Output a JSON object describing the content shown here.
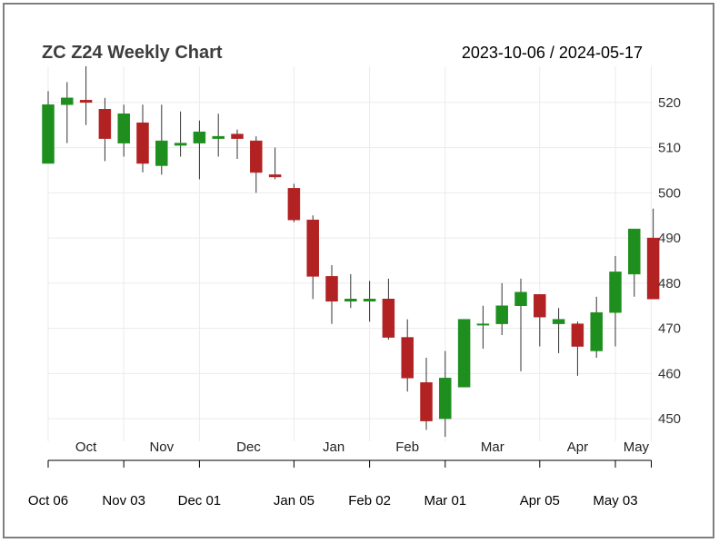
{
  "chart_data": {
    "type": "candlestick",
    "title": "ZC Z24 Weekly Chart",
    "date_range": "2023-10-06 / 2024-05-17",
    "ylim": [
      445,
      528
    ],
    "yticks": [
      450,
      460,
      470,
      480,
      490,
      500,
      510,
      520
    ],
    "colors": {
      "up": "#1e8f1e",
      "down": "#b22222",
      "wick": "#333333",
      "grid": "#ebebeb"
    },
    "grid": true,
    "month_labels": [
      {
        "label": "Oct",
        "week": 2
      },
      {
        "label": "Nov",
        "week": 6
      },
      {
        "label": "Dec",
        "week": 10.6
      },
      {
        "label": "Jan",
        "week": 15.1
      },
      {
        "label": "Feb",
        "week": 19
      },
      {
        "label": "Mar",
        "week": 23.5
      },
      {
        "label": "Apr",
        "week": 28
      },
      {
        "label": "May",
        "week": 31.1
      }
    ],
    "x_tick_weeks": [
      0,
      4,
      8,
      13,
      17,
      21,
      26,
      30,
      31.9
    ],
    "x_labels": [
      {
        "label": "Oct 06",
        "week": 0
      },
      {
        "label": "Nov 03",
        "week": 4
      },
      {
        "label": "Dec 01",
        "week": 8
      },
      {
        "label": "Jan 05",
        "week": 13
      },
      {
        "label": "Feb 02",
        "week": 17
      },
      {
        "label": "Mar 01",
        "week": 21
      },
      {
        "label": "Apr 05",
        "week": 26
      },
      {
        "label": "May 03",
        "week": 30
      }
    ],
    "candles": [
      {
        "date": "2023-10-06",
        "open": 506.5,
        "high": 522.5,
        "low": 506.5,
        "close": 519.5
      },
      {
        "date": "2023-10-13",
        "open": 519.5,
        "high": 524.5,
        "low": 511.0,
        "close": 521.0
      },
      {
        "date": "2023-10-20",
        "open": 520.5,
        "high": 528.0,
        "low": 515.0,
        "close": 520.0
      },
      {
        "date": "2023-10-27",
        "open": 518.5,
        "high": 521.0,
        "low": 507.0,
        "close": 512.0
      },
      {
        "date": "2023-11-03",
        "open": 511.0,
        "high": 519.5,
        "low": 508.0,
        "close": 517.5
      },
      {
        "date": "2023-11-10",
        "open": 515.5,
        "high": 519.5,
        "low": 504.5,
        "close": 506.5
      },
      {
        "date": "2023-11-17",
        "open": 506.0,
        "high": 519.5,
        "low": 504.0,
        "close": 511.5
      },
      {
        "date": "2023-11-24",
        "open": 510.5,
        "high": 518.0,
        "low": 508.0,
        "close": 511.0
      },
      {
        "date": "2023-12-01",
        "open": 511.0,
        "high": 516.0,
        "low": 503.0,
        "close": 513.5
      },
      {
        "date": "2023-12-08",
        "open": 512.0,
        "high": 517.5,
        "low": 508.0,
        "close": 512.5
      },
      {
        "date": "2023-12-15",
        "open": 513.0,
        "high": 514.0,
        "low": 507.5,
        "close": 512.0
      },
      {
        "date": "2023-12-22",
        "open": 511.5,
        "high": 512.5,
        "low": 500.0,
        "close": 504.5
      },
      {
        "date": "2023-12-29",
        "open": 504.0,
        "high": 510.0,
        "low": 503.0,
        "close": 503.5
      },
      {
        "date": "2024-01-05",
        "open": 501.0,
        "high": 502.0,
        "low": 493.5,
        "close": 494.0
      },
      {
        "date": "2024-01-12",
        "open": 494.0,
        "high": 495.0,
        "low": 476.5,
        "close": 481.5
      },
      {
        "date": "2024-01-19",
        "open": 481.5,
        "high": 484.0,
        "low": 471.0,
        "close": 476.0
      },
      {
        "date": "2024-01-26",
        "open": 476.0,
        "high": 482.0,
        "low": 474.5,
        "close": 476.5
      },
      {
        "date": "2024-02-02",
        "open": 476.0,
        "high": 480.5,
        "low": 471.5,
        "close": 476.5
      },
      {
        "date": "2024-02-09",
        "open": 476.5,
        "high": 481.0,
        "low": 467.5,
        "close": 468.0
      },
      {
        "date": "2024-02-16",
        "open": 468.0,
        "high": 472.0,
        "low": 456.0,
        "close": 459.0
      },
      {
        "date": "2024-02-23",
        "open": 458.0,
        "high": 463.5,
        "low": 447.5,
        "close": 449.5
      },
      {
        "date": "2024-03-01",
        "open": 450.0,
        "high": 465.0,
        "low": 446.0,
        "close": 459.0
      },
      {
        "date": "2024-03-08",
        "open": 457.0,
        "high": 472.0,
        "low": 457.0,
        "close": 472.0
      },
      {
        "date": "2024-03-15",
        "open": 471.0,
        "high": 475.0,
        "low": 465.5,
        "close": 471.0
      },
      {
        "date": "2024-03-22",
        "open": 471.0,
        "high": 480.0,
        "low": 468.5,
        "close": 475.0
      },
      {
        "date": "2024-03-29",
        "open": 475.0,
        "high": 481.0,
        "low": 460.5,
        "close": 478.0
      },
      {
        "date": "2024-04-05",
        "open": 477.5,
        "high": 477.5,
        "low": 466.0,
        "close": 472.5
      },
      {
        "date": "2024-04-12",
        "open": 471.0,
        "high": 474.5,
        "low": 464.5,
        "close": 472.0
      },
      {
        "date": "2024-04-19",
        "open": 471.0,
        "high": 471.5,
        "low": 459.5,
        "close": 466.0
      },
      {
        "date": "2024-04-26",
        "open": 465.0,
        "high": 477.0,
        "low": 463.5,
        "close": 473.5
      },
      {
        "date": "2024-05-03",
        "open": 473.5,
        "high": 486.0,
        "low": 466.0,
        "close": 482.5
      },
      {
        "date": "2024-05-10",
        "open": 482.0,
        "high": 492.0,
        "low": 477.0,
        "close": 492.0
      },
      {
        "date": "2024-05-17",
        "open": 490.0,
        "high": 496.5,
        "low": 476.5,
        "close": 476.5
      }
    ]
  }
}
